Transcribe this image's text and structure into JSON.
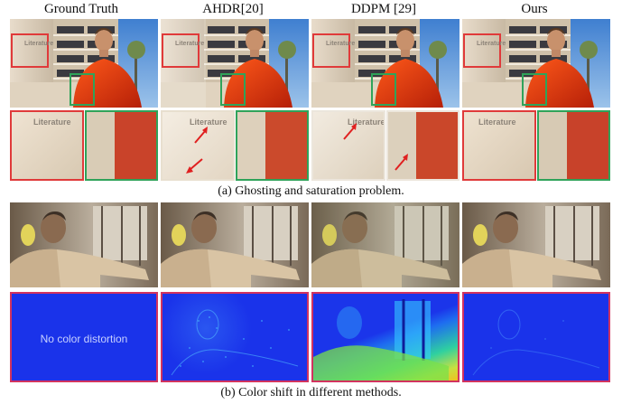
{
  "columns": [
    "Ground Truth",
    "AHDR[20]",
    "DDPM [29]",
    "Ours"
  ],
  "sign_text": "Literature",
  "no_distortion_label": "No color distortion",
  "caption_a": "(a) Ghosting and saturation problem.",
  "caption_b": "(b) Color shift in different methods.",
  "colors": {
    "inset_red": "#e03a3a",
    "inset_green": "#2fa35a",
    "error_border": "#d2335f",
    "error_blue": "#1830e8"
  }
}
